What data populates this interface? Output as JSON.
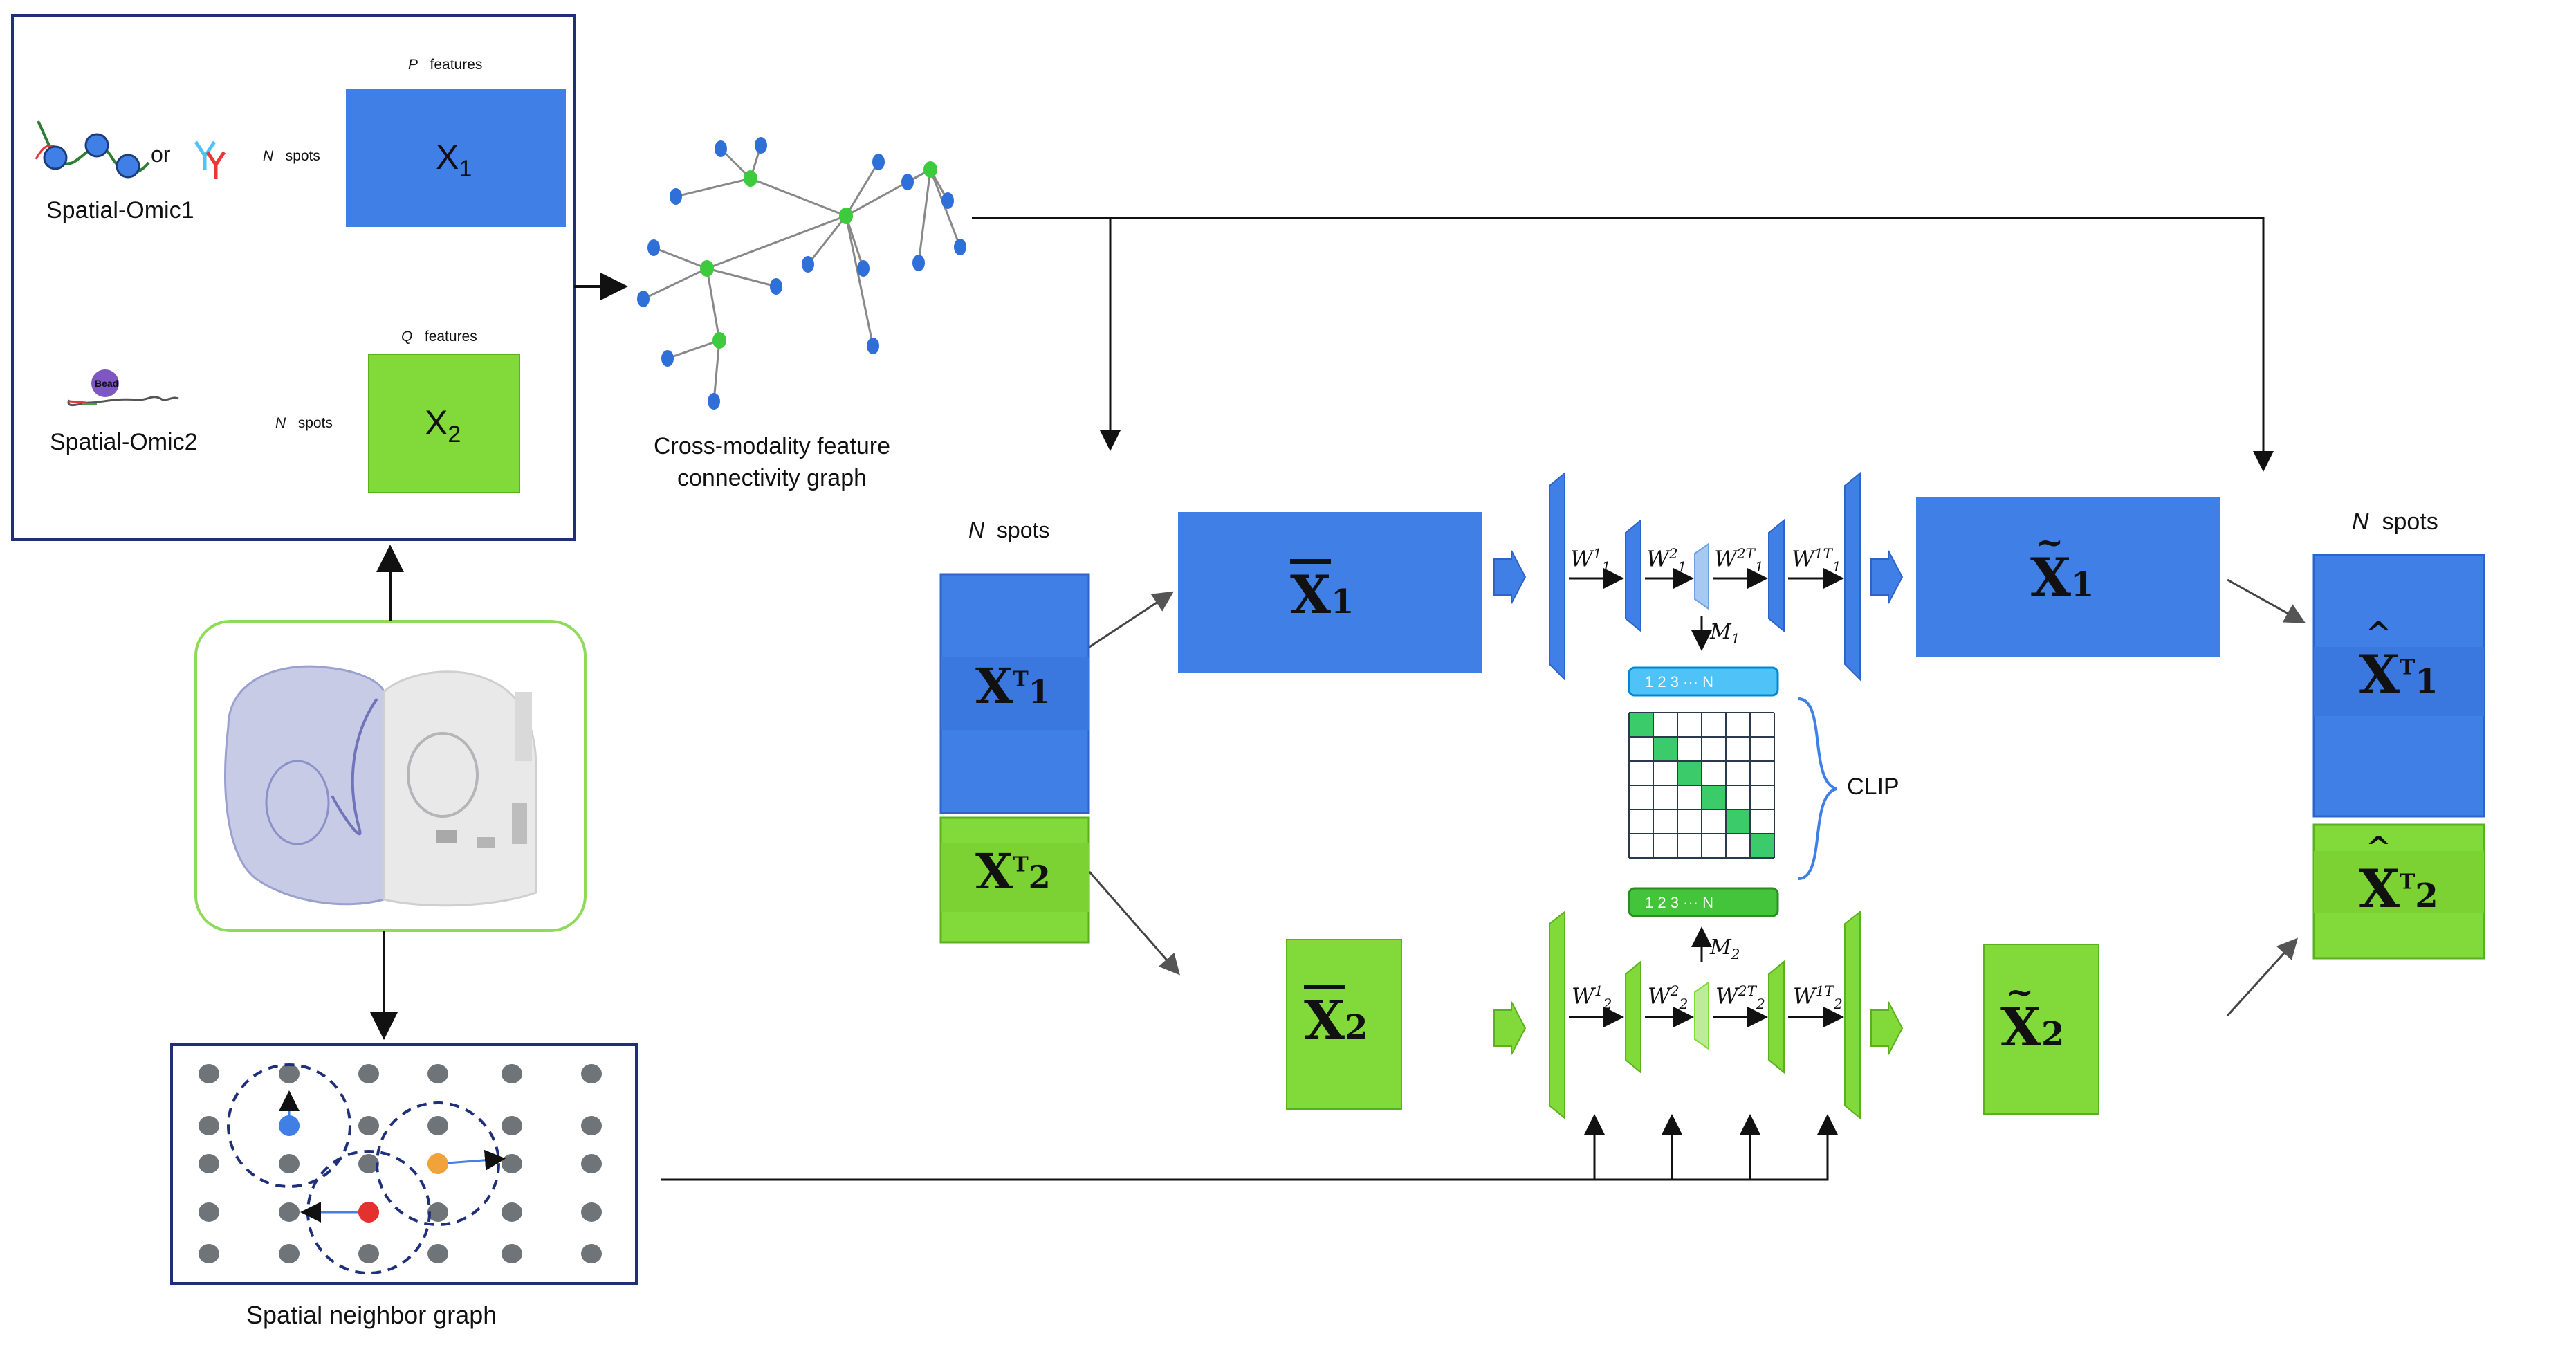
{
  "input_box": {
    "omic1": {
      "label": "Spatial-Omic1",
      "or_text": "or",
      "features_var": "P",
      "features_word": "features",
      "spots_var": "N",
      "spots_word": "spots",
      "matrix": "X",
      "matrix_sub": "1"
    },
    "omic2": {
      "label": "Spatial-Omic2",
      "bead_text": "Bead",
      "features_var": "Q",
      "features_word": "features",
      "spots_var": "N",
      "spots_word": "spots",
      "matrix": "X",
      "matrix_sub": "2"
    }
  },
  "feature_graph": {
    "label_line1": "Cross-modality feature",
    "label_line2": "connectivity graph"
  },
  "spatial_graph": {
    "label": "Spatial neighbor graph"
  },
  "left_stack": {
    "spots_var": "N",
    "spots_word": "spots",
    "x1": "X",
    "x1_sup": "T",
    "x1_sub": "1",
    "x2": "X",
    "x2_sup": "T",
    "x2_sub": "2"
  },
  "right_stack": {
    "spots_var": "N",
    "spots_word": "spots",
    "x1": "X",
    "x1_sup": "T",
    "x1_sub": "1",
    "x2": "X",
    "x2_sup": "T",
    "x2_sub": "2"
  },
  "encoder": {
    "xbar1": "X",
    "xbar1_sub": "1",
    "xbar2": "X",
    "xbar2_sub": "2",
    "xtilde1": "X",
    "xtilde1_sub": "1",
    "xtilde2": "X",
    "xtilde2_sub": "2",
    "top_weights": [
      "W",
      "W",
      "W",
      "W"
    ],
    "bottom_weights": [
      "W",
      "W",
      "W",
      "W"
    ],
    "m1": "M",
    "m1_sub": "1",
    "m2": "M",
    "m2_sub": "2",
    "clip": "CLIP",
    "index_bar_top": "1  2  3  ···  N",
    "index_bar_bottom": "1  2  3  ···  N"
  },
  "colors": {
    "blue": "#3F7FE6",
    "blue_dark": "#2E63C8",
    "green": "#82D93A",
    "green_dark": "#5BB01E",
    "frame": "#1F2F7A",
    "lime_frame": "#8EDB5A"
  }
}
